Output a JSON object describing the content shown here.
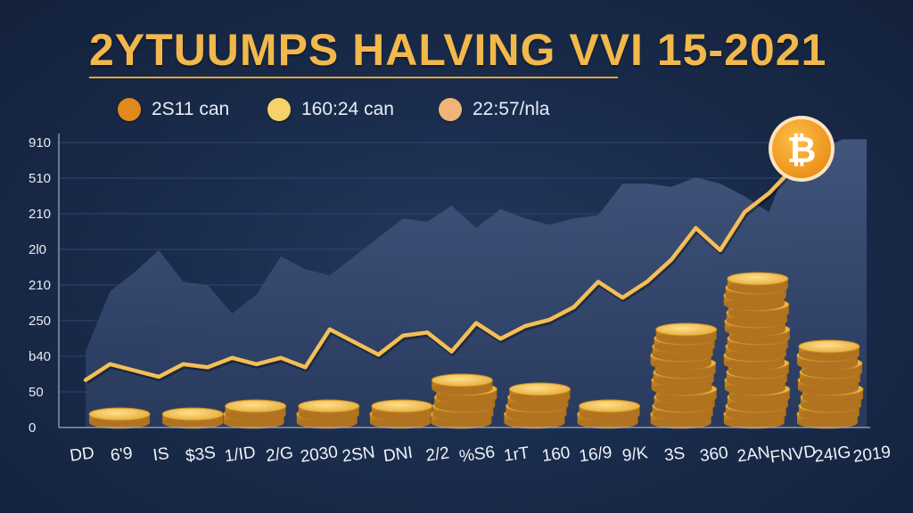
{
  "colors": {
    "accent": "#f2b84b",
    "area": "#3a4d75",
    "line": "#f4bf55",
    "coin_face": "#f5c653",
    "coin_edge": "#c98a23",
    "bitcoin_badge": "#f5a623"
  },
  "icons": {
    "badge": "bitcoin-icon",
    "arrow": "arrow-up-right-icon"
  },
  "chart_data": {
    "type": "area",
    "title": "2YTUUMPS HALVING VVI 15-2021",
    "legend": [
      {
        "label": "2S11 can",
        "color": "#e08a1c"
      },
      {
        "label": "160:24 can",
        "color": "#f6d26a"
      },
      {
        "label": "22:57/nla",
        "color": "#f0b478"
      }
    ],
    "y_ticks": [
      "910",
      "510",
      "210",
      "2l0",
      "210",
      "250",
      "b40",
      "50",
      "0"
    ],
    "x_ticks": [
      "DD",
      "6'9",
      "IS",
      "$3S",
      "1/ID",
      "2/G",
      "2030",
      "2SN",
      "DNI",
      "2/2",
      "%S6",
      "1rT",
      "160",
      "16/9",
      "9/K",
      "3S",
      "360",
      "2AN",
      "FNVD",
      "24IG",
      "2019"
    ],
    "ylim": [
      0,
      9
    ],
    "grid": true,
    "series": [
      {
        "kind": "area",
        "x": [
          0,
          1,
          2,
          3,
          4,
          5,
          6,
          7,
          8,
          9,
          10,
          11,
          12,
          13,
          14,
          15,
          16,
          17,
          18,
          19,
          20,
          21,
          22,
          23,
          24,
          25,
          26,
          27,
          28,
          29,
          30,
          31,
          32
        ],
        "values": [
          2.4,
          4.3,
          4.9,
          5.6,
          4.6,
          4.5,
          3.6,
          4.2,
          5.4,
          5.0,
          4.8,
          5.4,
          6.0,
          6.6,
          6.5,
          7.0,
          6.3,
          6.9,
          6.6,
          6.4,
          6.6,
          6.7,
          7.7,
          7.7,
          7.6,
          7.9,
          7.7,
          7.3,
          6.8,
          8.8,
          8.7,
          9.1,
          9.1
        ]
      },
      {
        "kind": "line",
        "x": [
          0,
          1,
          2,
          3,
          4,
          5,
          6,
          7,
          8,
          9,
          10,
          11,
          12,
          13,
          14,
          15,
          16,
          17,
          18,
          19,
          20,
          21,
          22,
          23,
          24,
          25,
          26,
          27,
          28,
          29
        ],
        "values": [
          1.5,
          2.0,
          1.8,
          1.6,
          2.0,
          1.9,
          2.2,
          2.0,
          2.2,
          1.9,
          3.1,
          2.7,
          2.3,
          2.9,
          3.0,
          2.4,
          3.3,
          2.8,
          3.2,
          3.4,
          3.8,
          4.6,
          4.1,
          4.6,
          5.3,
          6.3,
          5.6,
          6.8,
          7.4,
          8.2
        ]
      }
    ],
    "coin_stacks": [
      {
        "x": 1.5,
        "coins": 1
      },
      {
        "x": 4.5,
        "coins": 1
      },
      {
        "x": 7.0,
        "coins": 2
      },
      {
        "x": 10.0,
        "coins": 2
      },
      {
        "x": 13.0,
        "coins": 2
      },
      {
        "x": 15.5,
        "coins": 5
      },
      {
        "x": 18.5,
        "coins": 4
      },
      {
        "x": 21.5,
        "coins": 2
      },
      {
        "x": 24.5,
        "coins": 11
      },
      {
        "x": 27.5,
        "coins": 17
      },
      {
        "x": 30.5,
        "coins": 9
      }
    ]
  }
}
